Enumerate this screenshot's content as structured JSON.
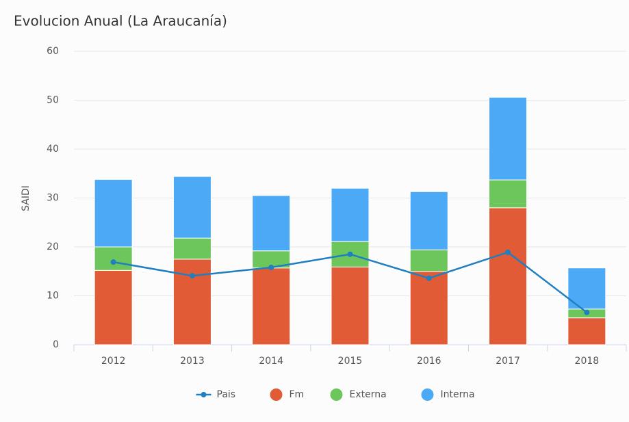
{
  "chart_data": {
    "type": "bar",
    "stacked": true,
    "title": "Evolucion Anual (La Araucanía)",
    "y_label": "SAIDI",
    "categories": [
      "2012",
      "2013",
      "2014",
      "2015",
      "2016",
      "2017",
      "2018"
    ],
    "series": [
      {
        "name": "Pais",
        "type": "line",
        "color": "#1f7fbf",
        "values": [
          16.9,
          14.1,
          15.8,
          18.5,
          13.6,
          18.9,
          6.6
        ]
      },
      {
        "name": "Fm",
        "type": "bar",
        "color": "#e15b36",
        "values": [
          15.2,
          17.5,
          15.7,
          15.9,
          15.0,
          28.0,
          5.5
        ]
      },
      {
        "name": "Externa",
        "type": "bar",
        "color": "#6cc65b",
        "values": [
          4.8,
          4.3,
          3.5,
          5.2,
          4.4,
          5.7,
          1.8
        ]
      },
      {
        "name": "Interna",
        "type": "bar",
        "color": "#4ba9f6",
        "values": [
          13.8,
          12.6,
          11.3,
          10.9,
          11.9,
          16.9,
          8.4
        ]
      }
    ],
    "ylim": [
      0,
      60
    ],
    "yticks": [
      0,
      10,
      20,
      30,
      40,
      50,
      60
    ],
    "grid": true,
    "legend": "bottom"
  }
}
